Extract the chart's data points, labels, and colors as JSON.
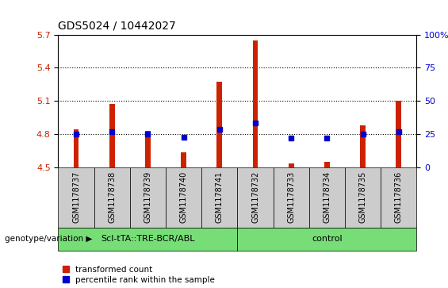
{
  "title": "GDS5024 / 10442027",
  "samples": [
    "GSM1178737",
    "GSM1178738",
    "GSM1178739",
    "GSM1178740",
    "GSM1178741",
    "GSM1178732",
    "GSM1178733",
    "GSM1178734",
    "GSM1178735",
    "GSM1178736"
  ],
  "bar_tops": [
    4.84,
    5.07,
    4.83,
    4.63,
    5.27,
    5.65,
    4.53,
    4.55,
    4.88,
    5.1
  ],
  "bar_bottoms": [
    4.5,
    4.5,
    4.5,
    4.5,
    4.5,
    4.5,
    4.5,
    4.5,
    4.5,
    4.5
  ],
  "percentile_values": [
    4.8,
    4.82,
    4.8,
    4.77,
    4.84,
    4.9,
    4.76,
    4.76,
    4.8,
    4.82
  ],
  "ylim": [
    4.5,
    5.7
  ],
  "yticks_left": [
    4.5,
    4.8,
    5.1,
    5.4,
    5.7
  ],
  "yticks_right": [
    0,
    25,
    50,
    75,
    100
  ],
  "bar_color": "#cc2200",
  "dot_color": "#0000cc",
  "group1_label": "Scl-tTA::TRE-BCR/ABL",
  "group2_label": "control",
  "group1_indices": [
    0,
    1,
    2,
    3,
    4
  ],
  "group2_indices": [
    5,
    6,
    7,
    8,
    9
  ],
  "group_bg_color": "#77dd77",
  "sample_bg_color": "#cccccc",
  "legend_red_label": "transformed count",
  "legend_blue_label": "percentile rank within the sample",
  "xlabel_left": "genotype/variation",
  "bar_width": 0.15,
  "title_fontsize": 10,
  "tick_fontsize": 8,
  "sample_fontsize": 7,
  "geno_fontsize": 8
}
